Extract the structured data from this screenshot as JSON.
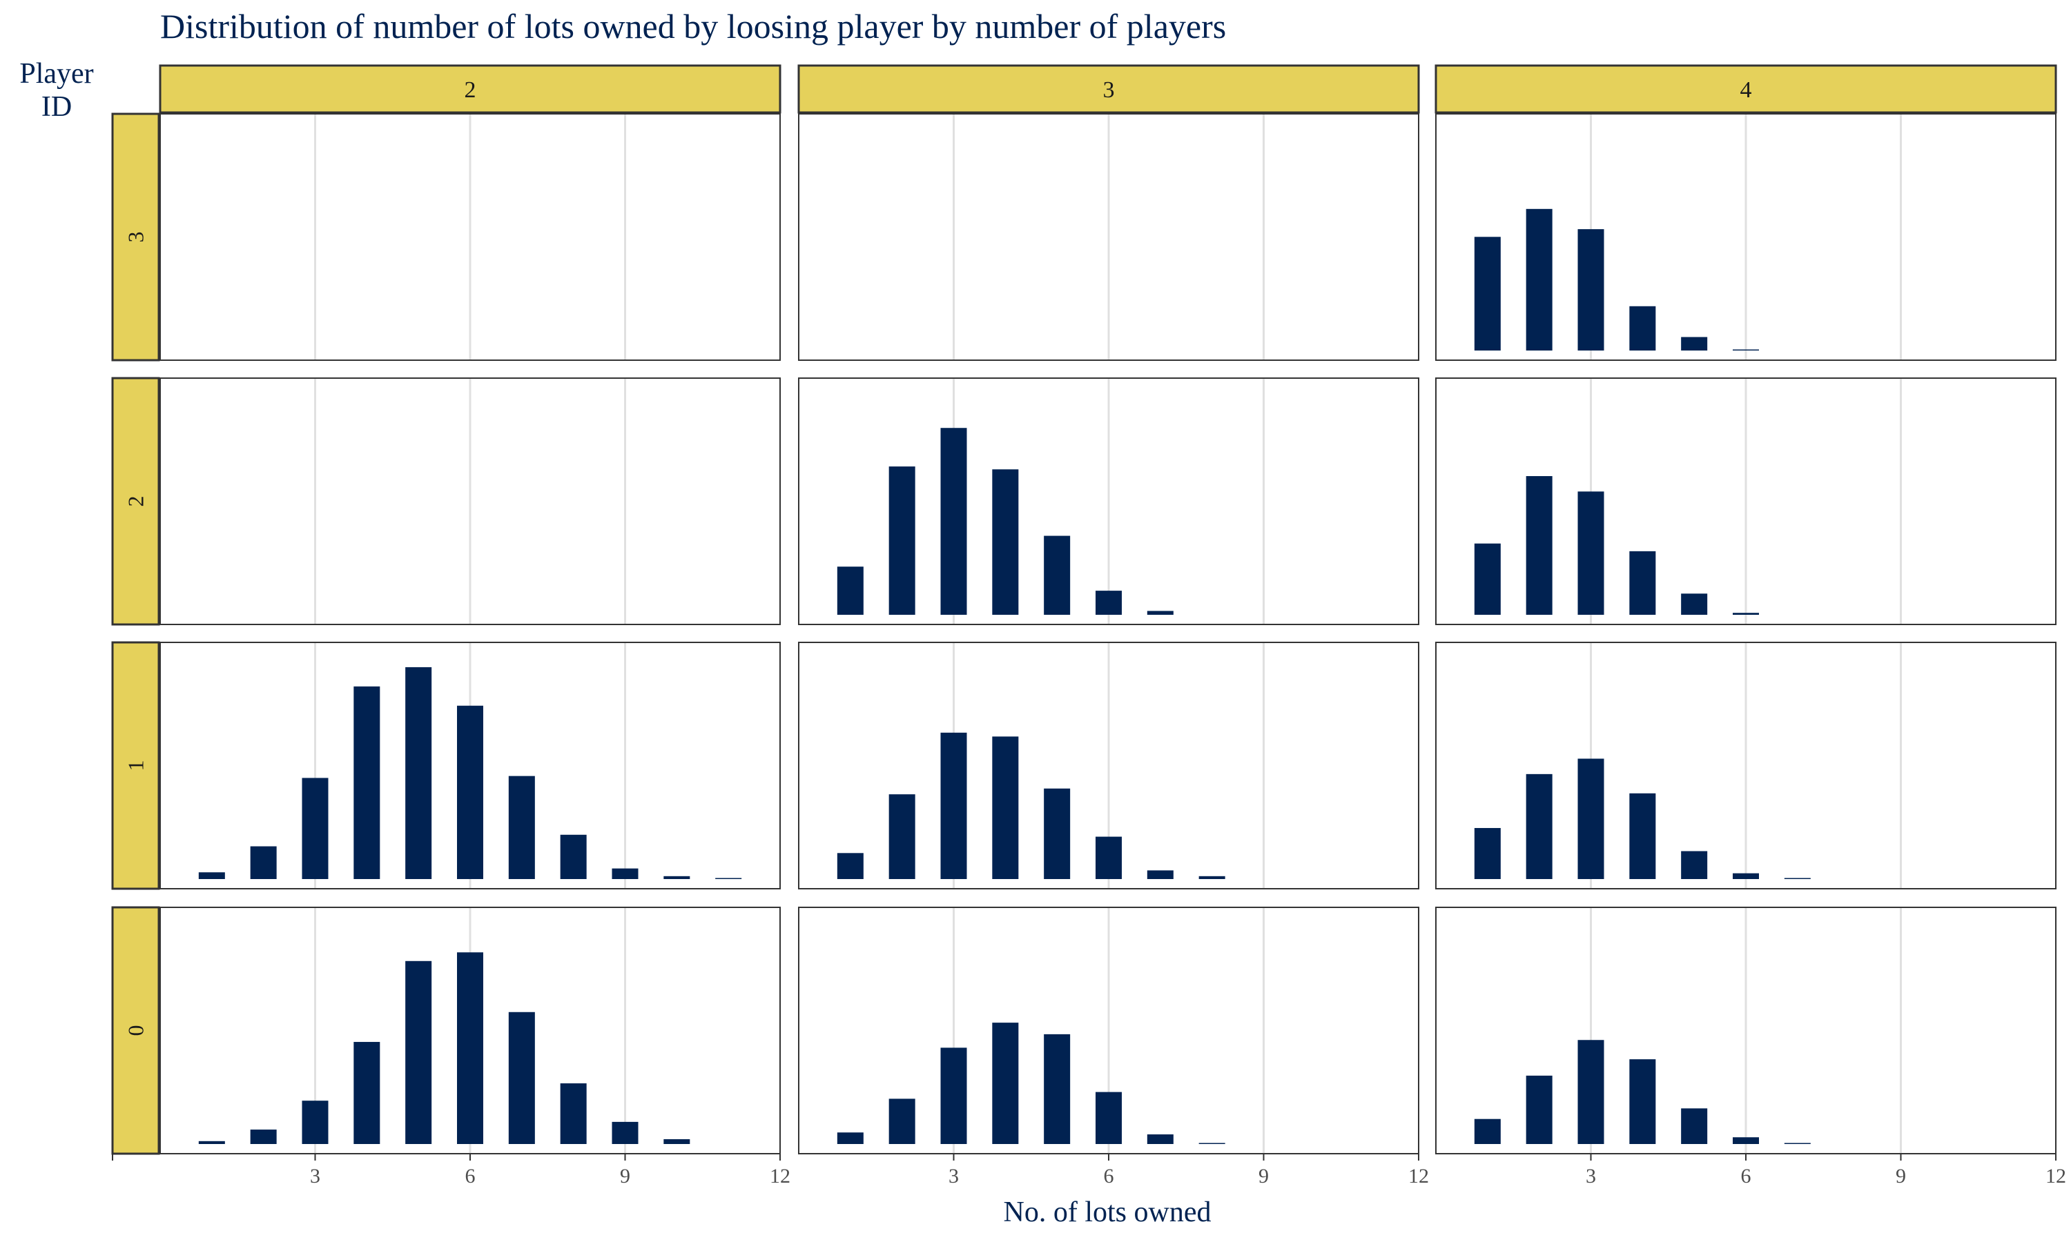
{
  "chart_data": {
    "type": "bar",
    "title": "Distribution of number of lots owned by loosing player by number of players",
    "xlabel": "No. of lots owned",
    "ylabel": "",
    "row_strip_title": "Player\nID",
    "x_ticks": [
      3,
      6,
      9,
      12
    ],
    "xlim": [
      0,
      12
    ],
    "ylim": [
      0,
      0.24
    ],
    "grid": "vertical-major",
    "facet_columns": [
      "2",
      "3",
      "4"
    ],
    "facet_rows": [
      "3",
      "2",
      "1",
      "0"
    ],
    "panels": [
      {
        "col": "2",
        "row": "3",
        "x": [],
        "values": []
      },
      {
        "col": "3",
        "row": "3",
        "x": [],
        "values": []
      },
      {
        "col": "4",
        "row": "3",
        "x": [
          1,
          2,
          3,
          4,
          5,
          6
        ],
        "values": [
          0.118,
          0.147,
          0.126,
          0.046,
          0.014,
          0.001
        ]
      },
      {
        "col": "2",
        "row": "2",
        "x": [],
        "values": []
      },
      {
        "col": "3",
        "row": "2",
        "x": [
          1,
          2,
          3,
          4,
          5,
          6,
          7
        ],
        "values": [
          0.05,
          0.154,
          0.194,
          0.151,
          0.082,
          0.025,
          0.004
        ]
      },
      {
        "col": "4",
        "row": "2",
        "x": [
          1,
          2,
          3,
          4,
          5,
          6
        ],
        "values": [
          0.074,
          0.144,
          0.128,
          0.066,
          0.022,
          0.002
        ]
      },
      {
        "col": "2",
        "row": "1",
        "x": [
          1,
          2,
          3,
          4,
          5,
          6,
          7,
          8,
          9,
          10,
          11
        ],
        "values": [
          0.007,
          0.034,
          0.105,
          0.2,
          0.22,
          0.18,
          0.107,
          0.046,
          0.011,
          0.003,
          0.001
        ]
      },
      {
        "col": "3",
        "row": "1",
        "x": [
          1,
          2,
          3,
          4,
          5,
          6,
          7,
          8
        ],
        "values": [
          0.027,
          0.088,
          0.152,
          0.148,
          0.094,
          0.044,
          0.009,
          0.003
        ]
      },
      {
        "col": "4",
        "row": "1",
        "x": [
          1,
          2,
          3,
          4,
          5,
          6,
          7
        ],
        "values": [
          0.053,
          0.109,
          0.125,
          0.089,
          0.029,
          0.006,
          0.001
        ]
      },
      {
        "col": "2",
        "row": "0",
        "x": [
          1,
          2,
          3,
          4,
          5,
          6,
          7,
          8,
          9,
          10
        ],
        "values": [
          0.003,
          0.015,
          0.045,
          0.106,
          0.19,
          0.199,
          0.137,
          0.063,
          0.023,
          0.005
        ]
      },
      {
        "col": "3",
        "row": "0",
        "x": [
          1,
          2,
          3,
          4,
          5,
          6,
          7,
          8
        ],
        "values": [
          0.012,
          0.047,
          0.1,
          0.126,
          0.114,
          0.054,
          0.01,
          0.001
        ]
      },
      {
        "col": "4",
        "row": "0",
        "x": [
          1,
          2,
          3,
          4,
          5,
          6,
          7
        ],
        "values": [
          0.026,
          0.071,
          0.108,
          0.088,
          0.037,
          0.007,
          0.001
        ]
      }
    ]
  },
  "colors": {
    "bar": "#012251",
    "strip_fill": "#E5D15B",
    "strip_border": "#333333",
    "title_text": "#012251",
    "axis_text": "#4D4D4D",
    "grid": "#E0E0E0",
    "panel_border": "#333333"
  }
}
